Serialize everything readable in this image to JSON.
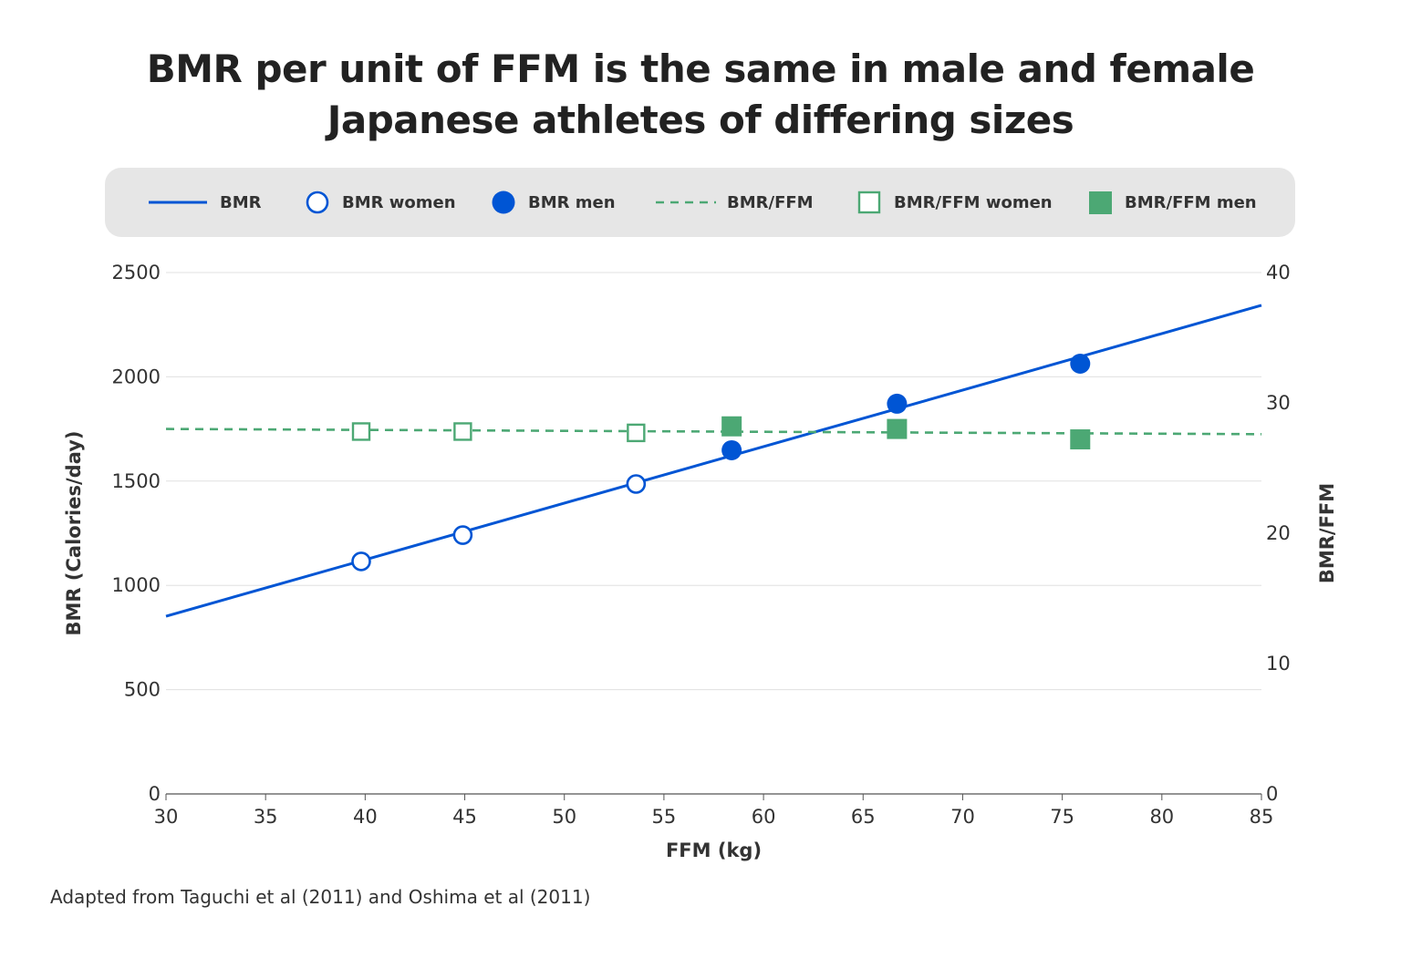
{
  "title_lines": [
    "BMR per unit of FFM is the same in male and female",
    "Japanese athletes of differing sizes"
  ],
  "source": "Adapted from Taguchi et al (2011) and Oshima et al (2011)",
  "colors": {
    "blue": "#0055d4",
    "green": "#4ca874",
    "legend_bg": "#e6e6e6",
    "grid": "#e0e0e0"
  },
  "legend": [
    {
      "label": "BMR",
      "marker": "solid-line",
      "color": "#0055d4"
    },
    {
      "label": "BMR women",
      "marker": "open-circle",
      "color": "#0055d4"
    },
    {
      "label": "BMR men",
      "marker": "filled-circle",
      "color": "#0055d4"
    },
    {
      "label": "BMR/FFM",
      "marker": "dashed-line",
      "color": "#4ca874"
    },
    {
      "label": "BMR/FFM women",
      "marker": "open-square",
      "color": "#4ca874"
    },
    {
      "label": "BMR/FFM men",
      "marker": "filled-square",
      "color": "#4ca874"
    }
  ],
  "chart_data": {
    "type": "scatter",
    "xlabel": "FFM (kg)",
    "ylabel": "BMR (Calories/day)",
    "y2label": "BMR/FFM",
    "xlim": [
      30,
      85
    ],
    "ylim": [
      0,
      2500
    ],
    "y2lim": [
      0,
      40
    ],
    "xticks": [
      "30",
      "35",
      "40",
      "45",
      "50",
      "55",
      "60",
      "65",
      "70",
      "75",
      "80",
      "85"
    ],
    "yticks": [
      "0",
      "500",
      "1000",
      "1500",
      "2000",
      "2500"
    ],
    "y2ticks": [
      "0",
      "10",
      "20",
      "30",
      "40"
    ],
    "grid": true,
    "legend_position": "top",
    "series": [
      {
        "name": "BMR",
        "axis": "left",
        "kind": "line",
        "x": [
          30,
          85
        ],
        "y": [
          852,
          2343
        ]
      },
      {
        "name": "BMR women",
        "axis": "left",
        "kind": "open-circle",
        "x": [
          39.8,
          44.9,
          53.6
        ],
        "y": [
          1115,
          1241,
          1486
        ]
      },
      {
        "name": "BMR men",
        "axis": "left",
        "kind": "filled-circle",
        "x": [
          58.4,
          66.7,
          75.9
        ],
        "y": [
          1648,
          1871,
          2063
        ]
      },
      {
        "name": "BMR/FFM",
        "axis": "right",
        "kind": "dashed-line",
        "x": [
          30,
          85
        ],
        "y": [
          28.0,
          27.6
        ]
      },
      {
        "name": "BMR/FFM women",
        "axis": "right",
        "kind": "open-square",
        "x": [
          39.8,
          44.9,
          53.6
        ],
        "y": [
          27.8,
          27.8,
          27.7
        ]
      },
      {
        "name": "BMR/FFM men",
        "axis": "right",
        "kind": "filled-square",
        "x": [
          58.4,
          66.7,
          75.9
        ],
        "y": [
          28.2,
          28.0,
          27.2
        ]
      }
    ]
  }
}
